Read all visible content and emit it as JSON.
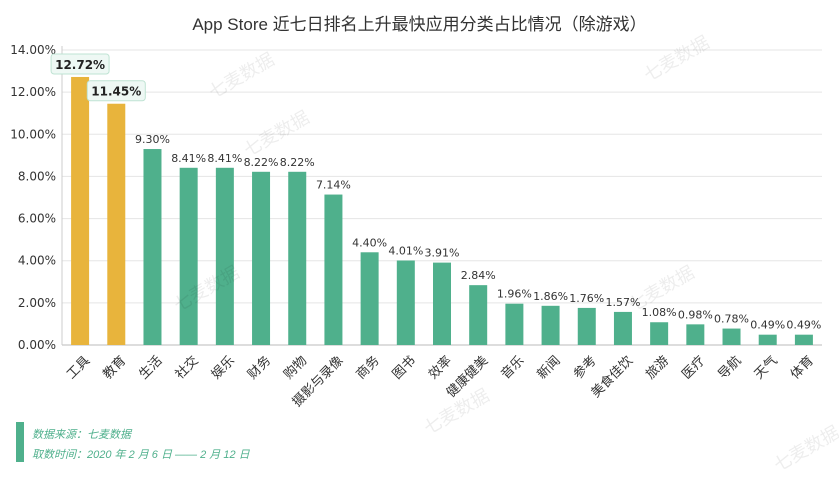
{
  "title": "App Store 近七日排名上升最快应用分类占比情况（除游戏）",
  "source_line": "数据来源：七麦数据",
  "time_line": "取数时间：2020 年 2 月 6 日 —— 2 月 12 日",
  "watermark": "七麦数据",
  "colors": {
    "highlight": "#e8b43c",
    "normal": "#4fb08c",
    "grid": "#e5e5e5",
    "label_box_fill": "#eef8f4",
    "label_box_stroke": "#bfe3d3"
  },
  "chart_data": {
    "type": "bar",
    "categories": [
      "工具",
      "教育",
      "生活",
      "社交",
      "娱乐",
      "财务",
      "购物",
      "摄影与录像",
      "商务",
      "图书",
      "效率",
      "健康健美",
      "音乐",
      "新闻",
      "参考",
      "美食佳饮",
      "旅游",
      "医疗",
      "导航",
      "天气",
      "体育"
    ],
    "values": [
      12.72,
      11.45,
      9.3,
      8.41,
      8.41,
      8.22,
      8.22,
      7.14,
      4.4,
      4.01,
      3.91,
      2.84,
      1.96,
      1.86,
      1.76,
      1.57,
      1.08,
      0.98,
      0.78,
      0.49,
      0.49
    ],
    "value_labels": [
      "12.72%",
      "11.45%",
      "9.30%",
      "8.41%",
      "8.41%",
      "8.22%",
      "8.22%",
      "7.14%",
      "4.40%",
      "4.01%",
      "3.91%",
      "2.84%",
      "1.96%",
      "1.86%",
      "1.76%",
      "1.57%",
      "1.08%",
      "0.98%",
      "0.78%",
      "0.49%",
      "0.49%"
    ],
    "highlighted": [
      true,
      true,
      false,
      false,
      false,
      false,
      false,
      false,
      false,
      false,
      false,
      false,
      false,
      false,
      false,
      false,
      false,
      false,
      false,
      false,
      false
    ],
    "yticks": [
      "0.00%",
      "2.00%",
      "4.00%",
      "6.00%",
      "8.00%",
      "10.00%",
      "12.00%",
      "14.00%"
    ],
    "ylim": [
      0,
      14
    ],
    "grid": true
  }
}
